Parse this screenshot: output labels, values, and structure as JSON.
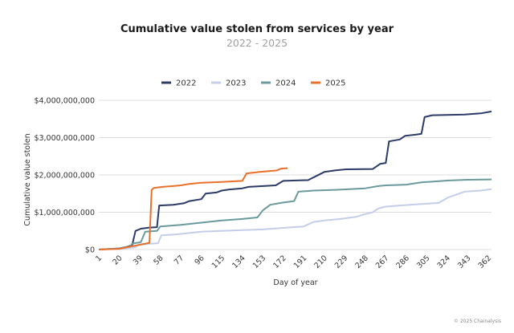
{
  "chart_data": {
    "type": "line",
    "title": "Cumulative value stolen from services by year",
    "subtitle": "2022 - 2025",
    "xlabel": "Day of year",
    "ylabel": "Cumulative value stolen",
    "xlim": [
      1,
      365
    ],
    "ylim": [
      0,
      4000000000
    ],
    "grid": true,
    "legend_position": "top-center",
    "x_ticks": [
      "1",
      "20",
      "39",
      "58",
      "77",
      "96",
      "115",
      "134",
      "153",
      "172",
      "191",
      "210",
      "229",
      "248",
      "267",
      "286",
      "305",
      "324",
      "343",
      "362"
    ],
    "y_ticks": [
      {
        "value": 0,
        "label": "$0"
      },
      {
        "value": 1000000000,
        "label": "$1,000,000,000"
      },
      {
        "value": 2000000000,
        "label": "$2,000,000,000"
      },
      {
        "value": 3000000000,
        "label": "$3,000,000,000"
      },
      {
        "value": 4000000000,
        "label": "$4,000,000,000"
      }
    ],
    "credit": "© 2025 Chainalysis",
    "series": [
      {
        "name": "2022",
        "color": "#2b3a67",
        "points": [
          [
            1,
            0
          ],
          [
            20,
            30000000
          ],
          [
            28,
            80000000
          ],
          [
            32,
            120000000
          ],
          [
            35,
            500000000
          ],
          [
            40,
            560000000
          ],
          [
            48,
            590000000
          ],
          [
            55,
            600000000
          ],
          [
            57,
            1180000000
          ],
          [
            70,
            1200000000
          ],
          [
            80,
            1240000000
          ],
          [
            85,
            1300000000
          ],
          [
            96,
            1350000000
          ],
          [
            100,
            1500000000
          ],
          [
            110,
            1530000000
          ],
          [
            115,
            1580000000
          ],
          [
            122,
            1610000000
          ],
          [
            134,
            1640000000
          ],
          [
            140,
            1680000000
          ],
          [
            165,
            1720000000
          ],
          [
            172,
            1840000000
          ],
          [
            195,
            1860000000
          ],
          [
            210,
            2080000000
          ],
          [
            220,
            2120000000
          ],
          [
            230,
            2150000000
          ],
          [
            255,
            2160000000
          ],
          [
            262,
            2300000000
          ],
          [
            267,
            2320000000
          ],
          [
            270,
            2900000000
          ],
          [
            280,
            2950000000
          ],
          [
            285,
            3050000000
          ],
          [
            295,
            3080000000
          ],
          [
            300,
            3100000000
          ],
          [
            303,
            3550000000
          ],
          [
            310,
            3600000000
          ],
          [
            340,
            3620000000
          ],
          [
            355,
            3650000000
          ],
          [
            365,
            3700000000
          ]
        ]
      },
      {
        "name": "2023",
        "color": "#c4cdea",
        "points": [
          [
            1,
            0
          ],
          [
            20,
            20000000
          ],
          [
            35,
            60000000
          ],
          [
            38,
            140000000
          ],
          [
            50,
            160000000
          ],
          [
            56,
            170000000
          ],
          [
            59,
            380000000
          ],
          [
            70,
            400000000
          ],
          [
            77,
            420000000
          ],
          [
            90,
            460000000
          ],
          [
            96,
            480000000
          ],
          [
            115,
            500000000
          ],
          [
            134,
            520000000
          ],
          [
            153,
            540000000
          ],
          [
            172,
            580000000
          ],
          [
            191,
            620000000
          ],
          [
            200,
            740000000
          ],
          [
            210,
            780000000
          ],
          [
            225,
            820000000
          ],
          [
            240,
            880000000
          ],
          [
            248,
            950000000
          ],
          [
            255,
            1000000000
          ],
          [
            260,
            1100000000
          ],
          [
            267,
            1150000000
          ],
          [
            280,
            1180000000
          ],
          [
            300,
            1220000000
          ],
          [
            316,
            1250000000
          ],
          [
            325,
            1400000000
          ],
          [
            340,
            1550000000
          ],
          [
            355,
            1580000000
          ],
          [
            365,
            1620000000
          ]
        ]
      },
      {
        "name": "2024",
        "color": "#6a9a9c",
        "points": [
          [
            1,
            0
          ],
          [
            20,
            30000000
          ],
          [
            30,
            80000000
          ],
          [
            32,
            160000000
          ],
          [
            40,
            200000000
          ],
          [
            44,
            480000000
          ],
          [
            55,
            500000000
          ],
          [
            58,
            620000000
          ],
          [
            77,
            660000000
          ],
          [
            96,
            720000000
          ],
          [
            115,
            780000000
          ],
          [
            134,
            820000000
          ],
          [
            148,
            860000000
          ],
          [
            153,
            1050000000
          ],
          [
            160,
            1200000000
          ],
          [
            172,
            1260000000
          ],
          [
            182,
            1300000000
          ],
          [
            186,
            1550000000
          ],
          [
            200,
            1580000000
          ],
          [
            220,
            1600000000
          ],
          [
            248,
            1640000000
          ],
          [
            260,
            1700000000
          ],
          [
            267,
            1720000000
          ],
          [
            286,
            1740000000
          ],
          [
            300,
            1800000000
          ],
          [
            310,
            1820000000
          ],
          [
            324,
            1850000000
          ],
          [
            343,
            1870000000
          ],
          [
            365,
            1880000000
          ]
        ]
      },
      {
        "name": "2025",
        "color": "#e8702a",
        "points": [
          [
            1,
            0
          ],
          [
            20,
            20000000
          ],
          [
            30,
            80000000
          ],
          [
            38,
            120000000
          ],
          [
            48,
            180000000
          ],
          [
            50,
            1600000000
          ],
          [
            52,
            1650000000
          ],
          [
            60,
            1680000000
          ],
          [
            70,
            1700000000
          ],
          [
            77,
            1720000000
          ],
          [
            85,
            1760000000
          ],
          [
            96,
            1790000000
          ],
          [
            115,
            1810000000
          ],
          [
            134,
            1840000000
          ],
          [
            138,
            2040000000
          ],
          [
            150,
            2080000000
          ],
          [
            166,
            2120000000
          ],
          [
            170,
            2170000000
          ],
          [
            176,
            2180000000
          ]
        ]
      }
    ]
  }
}
